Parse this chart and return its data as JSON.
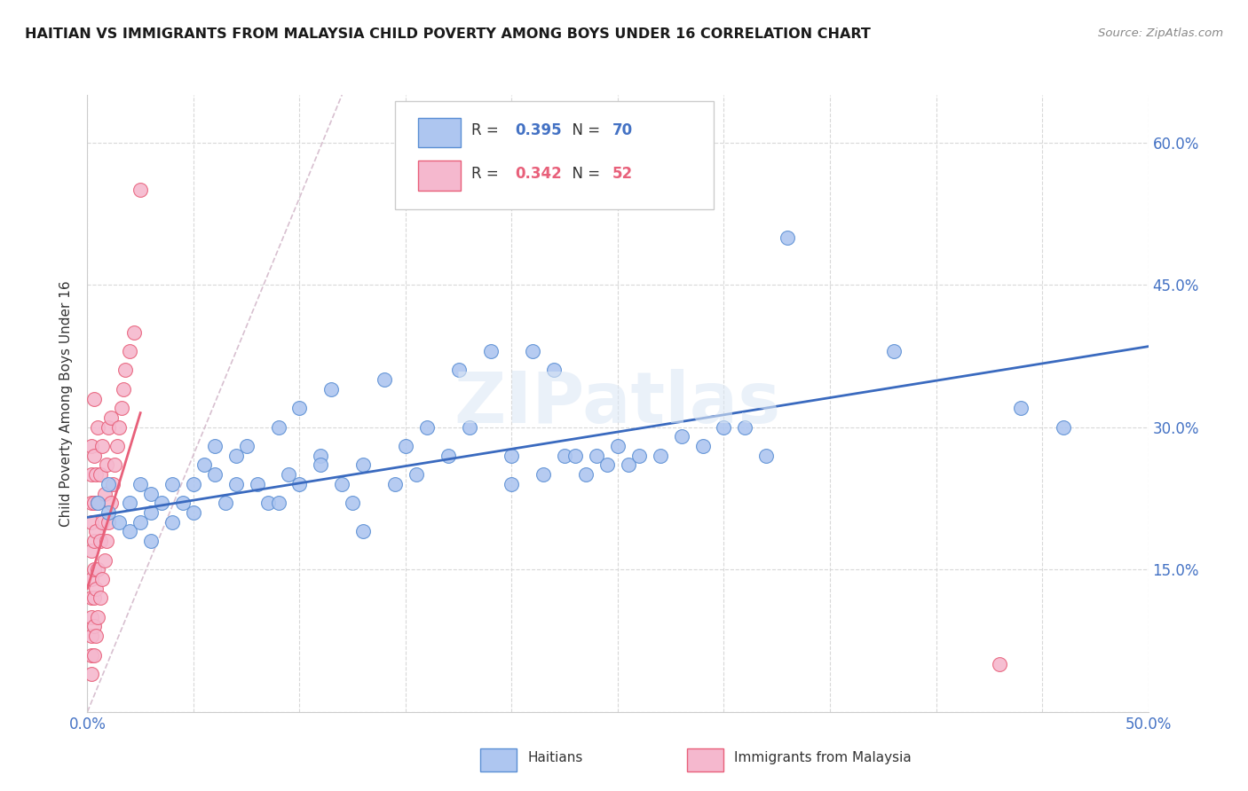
{
  "title": "HAITIAN VS IMMIGRANTS FROM MALAYSIA CHILD POVERTY AMONG BOYS UNDER 16 CORRELATION CHART",
  "source": "Source: ZipAtlas.com",
  "ylabel": "Child Poverty Among Boys Under 16",
  "xlim": [
    0.0,
    0.5
  ],
  "ylim": [
    0.0,
    0.65
  ],
  "xticks": [
    0.0,
    0.05,
    0.1,
    0.15,
    0.2,
    0.25,
    0.3,
    0.35,
    0.4,
    0.45,
    0.5
  ],
  "ytick_positions": [
    0.0,
    0.15,
    0.3,
    0.45,
    0.6
  ],
  "ytick_labels_right": [
    "",
    "15.0%",
    "30.0%",
    "45.0%",
    "60.0%"
  ],
  "haitian_color": "#aec6f0",
  "malaysia_color": "#f5b8ce",
  "haitian_edge_color": "#5b8fd4",
  "malaysia_edge_color": "#e8607a",
  "haitian_trend_color": "#3a6abf",
  "malaysia_trend_color": "#e8607a",
  "refline_color": "#d8c0d0",
  "grid_color": "#d8d8d8",
  "R_haitian": 0.395,
  "N_haitian": 70,
  "R_malaysia": 0.342,
  "N_malaysia": 52,
  "haitian_scatter_x": [
    0.005,
    0.01,
    0.01,
    0.015,
    0.02,
    0.02,
    0.025,
    0.025,
    0.03,
    0.03,
    0.03,
    0.035,
    0.04,
    0.04,
    0.045,
    0.05,
    0.05,
    0.055,
    0.06,
    0.06,
    0.065,
    0.07,
    0.07,
    0.075,
    0.08,
    0.085,
    0.09,
    0.09,
    0.095,
    0.1,
    0.1,
    0.11,
    0.11,
    0.115,
    0.12,
    0.125,
    0.13,
    0.13,
    0.14,
    0.145,
    0.15,
    0.155,
    0.16,
    0.17,
    0.175,
    0.18,
    0.19,
    0.2,
    0.2,
    0.21,
    0.215,
    0.22,
    0.225,
    0.23,
    0.235,
    0.24,
    0.245,
    0.25,
    0.255,
    0.26,
    0.27,
    0.28,
    0.29,
    0.3,
    0.31,
    0.32,
    0.33,
    0.38,
    0.44,
    0.46
  ],
  "haitian_scatter_y": [
    0.22,
    0.21,
    0.24,
    0.2,
    0.22,
    0.19,
    0.24,
    0.2,
    0.23,
    0.21,
    0.18,
    0.22,
    0.2,
    0.24,
    0.22,
    0.21,
    0.24,
    0.26,
    0.25,
    0.28,
    0.22,
    0.27,
    0.24,
    0.28,
    0.24,
    0.22,
    0.3,
    0.22,
    0.25,
    0.24,
    0.32,
    0.27,
    0.26,
    0.34,
    0.24,
    0.22,
    0.26,
    0.19,
    0.35,
    0.24,
    0.28,
    0.25,
    0.3,
    0.27,
    0.36,
    0.3,
    0.38,
    0.24,
    0.27,
    0.38,
    0.25,
    0.36,
    0.27,
    0.27,
    0.25,
    0.27,
    0.26,
    0.28,
    0.26,
    0.27,
    0.27,
    0.29,
    0.28,
    0.3,
    0.3,
    0.27,
    0.5,
    0.38,
    0.32,
    0.3
  ],
  "malaysia_scatter_x": [
    0.002,
    0.002,
    0.002,
    0.002,
    0.002,
    0.002,
    0.002,
    0.002,
    0.002,
    0.002,
    0.002,
    0.003,
    0.003,
    0.003,
    0.003,
    0.003,
    0.003,
    0.003,
    0.003,
    0.004,
    0.004,
    0.004,
    0.004,
    0.005,
    0.005,
    0.005,
    0.005,
    0.006,
    0.006,
    0.006,
    0.007,
    0.007,
    0.007,
    0.008,
    0.008,
    0.009,
    0.009,
    0.01,
    0.01,
    0.011,
    0.011,
    0.012,
    0.013,
    0.014,
    0.015,
    0.016,
    0.017,
    0.018,
    0.02,
    0.022,
    0.025,
    0.43
  ],
  "malaysia_scatter_y": [
    0.04,
    0.06,
    0.08,
    0.1,
    0.12,
    0.14,
    0.17,
    0.2,
    0.22,
    0.25,
    0.28,
    0.06,
    0.09,
    0.12,
    0.15,
    0.18,
    0.22,
    0.27,
    0.33,
    0.08,
    0.13,
    0.19,
    0.25,
    0.1,
    0.15,
    0.22,
    0.3,
    0.12,
    0.18,
    0.25,
    0.14,
    0.2,
    0.28,
    0.16,
    0.23,
    0.18,
    0.26,
    0.2,
    0.3,
    0.22,
    0.31,
    0.24,
    0.26,
    0.28,
    0.3,
    0.32,
    0.34,
    0.36,
    0.38,
    0.4,
    0.55,
    0.05
  ],
  "haitian_trendline_x": [
    0.0,
    0.5
  ],
  "haitian_trendline_y": [
    0.205,
    0.385
  ],
  "malaysia_trendline_x": [
    0.0,
    0.025
  ],
  "malaysia_trendline_y": [
    0.13,
    0.315
  ],
  "refline_x": [
    0.0,
    0.12
  ],
  "refline_y": [
    0.0,
    0.65
  ],
  "watermark": "ZIPatlas",
  "legend_haitian_label": "Haitians",
  "legend_malaysia_label": "Immigrants from Malaysia"
}
